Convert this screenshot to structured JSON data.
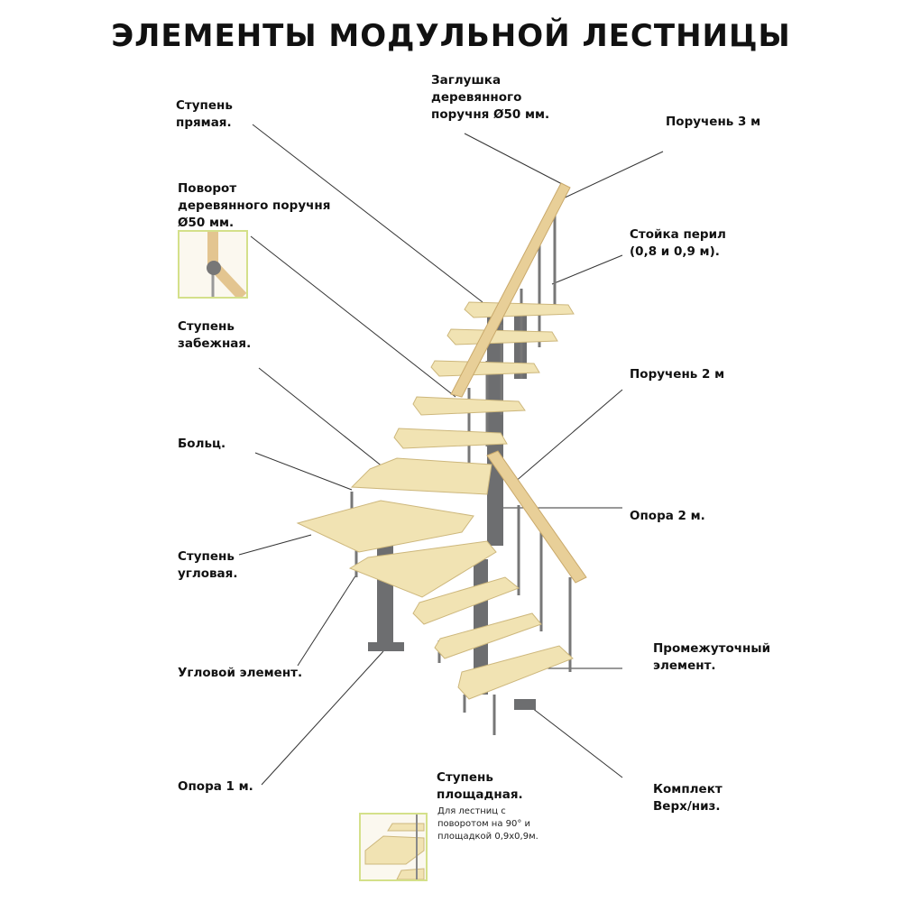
{
  "title": "ЭЛЕМЕНТЫ МОДУЛЬНОЙ ЛЕСТНИЦЫ",
  "labels": {
    "straight_step": "Ступень\nпрямая.",
    "cap": "Заглушка\nдеревянного\nпоручня Ø50 мм.",
    "handrail_3m": "Поручень 3 м",
    "baluster": "Стойка перил\n(0,8 и 0,9 м).",
    "rail_turn": "Поворот\nдеревянного поручня\nØ50 мм.",
    "winder_step": "Ступень\nзабежная.",
    "handrail_2m": "Поручень 2 м",
    "bolt": "Больц.",
    "support_2m": "Опора 2 м.",
    "corner_step": "Ступень\nугловая.",
    "corner_element": "Угловой элемент.",
    "intermediate": "Промежуточный\nэлемент.",
    "support_1m": "Опора 1 м.",
    "kit": "Комплект\nВерх/низ.",
    "landing_step": "Ступень\nплощадная.",
    "landing_note": "Для лестниц с\nповоротом на 90° и\nплощадкой 0,9х0,9м."
  },
  "colors": {
    "wood": "#f1e3b3",
    "metal": "#6d6e70",
    "thumb_border": "#d4e08a"
  }
}
